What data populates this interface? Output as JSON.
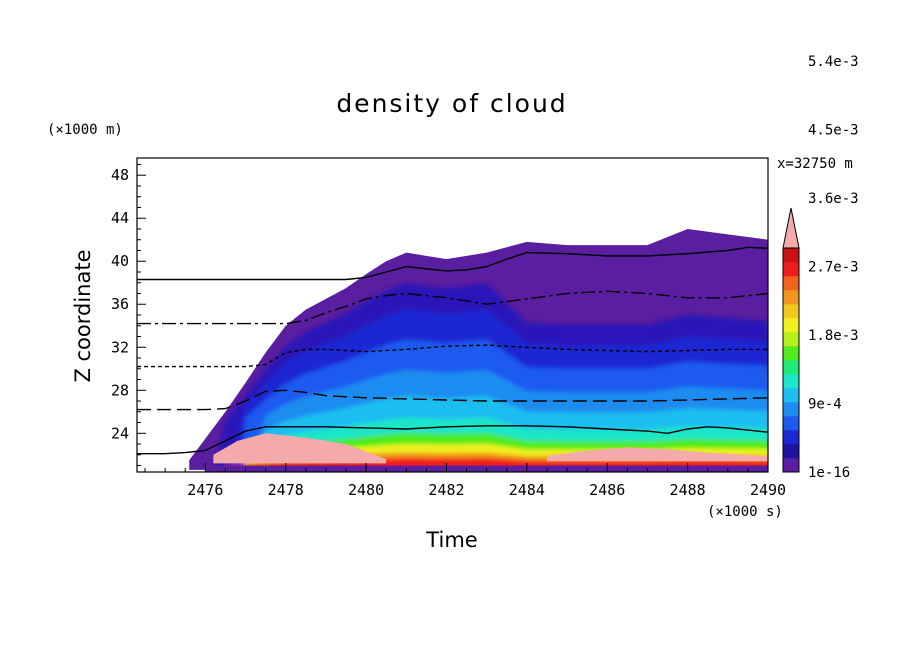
{
  "chart_data": {
    "type": "heatmap",
    "title": "density of cloud",
    "xlabel": "Time",
    "ylabel": "Z coordinate",
    "x_unit": "(×1000 s)",
    "y_unit": "(×1000 m)",
    "annotation": "x=32750 m",
    "xlim": [
      2474.3,
      2490
    ],
    "ylim": [
      20.4,
      49.6
    ],
    "x_ticks": [
      "2476",
      "2478",
      "2480",
      "2482",
      "2484",
      "2486",
      "2488",
      "2490"
    ],
    "y_ticks": [
      "24",
      "28",
      "32",
      "36",
      "40",
      "44",
      "48"
    ],
    "colorbar": {
      "labels": [
        "1e-16",
        "9e-4",
        "1.8e-3",
        "2.7e-3",
        "3.6e-3",
        "4.5e-3",
        "5.4e-3"
      ],
      "colors": [
        "#5a1ea0",
        "#1e14a0",
        "#1e28d2",
        "#1e5af0",
        "#1e8cf0",
        "#1ebef0",
        "#1ee6c8",
        "#1eeb78",
        "#50eb1e",
        "#b4f01e",
        "#f0f01e",
        "#f0c81e",
        "#f0961e",
        "#f0641e",
        "#f01e1e",
        "#c81414",
        "#f4aaaa"
      ],
      "extend": "max"
    },
    "cloud_envelope": {
      "x": [
        2475.6,
        2476.0,
        2476.5,
        2477.0,
        2477.5,
        2478.0,
        2478.5,
        2479.0,
        2479.5,
        2480.0,
        2480.5,
        2481.0,
        2482.0,
        2483.0,
        2484.0,
        2485.0,
        2486.0,
        2487.0,
        2488.0,
        2489.0,
        2490.0
      ],
      "top": [
        21.5,
        23.5,
        26.0,
        28.7,
        31.5,
        34.0,
        35.5,
        36.5,
        37.5,
        38.8,
        40.0,
        40.8,
        40.2,
        40.8,
        41.8,
        41.5,
        41.5,
        41.5,
        43.0,
        42.5,
        42.0
      ]
    },
    "contours": [
      {
        "style": "solid",
        "x": [
          2474.3,
          2475.0,
          2475.5,
          2476.0,
          2476.5,
          2477.0,
          2477.5,
          2478.0,
          2479.0,
          2480.0,
          2481.0,
          2482.0,
          2483.0,
          2484.0,
          2485.0,
          2486.0,
          2487.0,
          2487.5,
          2488.0,
          2488.5,
          2489.0,
          2490.0
        ],
        "y": [
          22.1,
          22.1,
          22.2,
          22.4,
          23.3,
          24.2,
          24.6,
          24.6,
          24.6,
          24.5,
          24.4,
          24.6,
          24.7,
          24.7,
          24.6,
          24.4,
          24.2,
          24.0,
          24.4,
          24.6,
          24.5,
          24.1
        ]
      },
      {
        "style": "long-dash",
        "x": [
          2474.3,
          2476.0,
          2476.5,
          2477.0,
          2477.5,
          2478.0,
          2478.5,
          2479.0,
          2480.0,
          2481.0,
          2482.0,
          2483.0,
          2484.0,
          2485.0,
          2486.0,
          2487.0,
          2488.0,
          2489.0,
          2490.0
        ],
        "y": [
          26.2,
          26.2,
          26.3,
          27.0,
          27.9,
          28.0,
          27.8,
          27.5,
          27.3,
          27.2,
          27.1,
          27.0,
          27.0,
          27.0,
          27.0,
          27.0,
          27.1,
          27.2,
          27.3
        ]
      },
      {
        "style": "short-dash",
        "x": [
          2474.3,
          2477.0,
          2477.5,
          2478.0,
          2478.5,
          2479.0,
          2479.5,
          2480.0,
          2481.0,
          2482.0,
          2483.0,
          2484.0,
          2485.0,
          2486.0,
          2487.0,
          2488.0,
          2489.0,
          2490.0
        ],
        "y": [
          30.2,
          30.2,
          30.4,
          31.5,
          31.8,
          31.8,
          31.7,
          31.6,
          31.8,
          32.1,
          32.2,
          32.0,
          31.8,
          31.7,
          31.6,
          31.7,
          31.8,
          31.8
        ]
      },
      {
        "style": "dash-dot",
        "x": [
          2474.3,
          2478.0,
          2478.5,
          2479.0,
          2479.5,
          2480.0,
          2480.5,
          2481.0,
          2482.0,
          2483.0,
          2484.0,
          2485.0,
          2486.0,
          2487.0,
          2488.0,
          2489.0,
          2490.0
        ],
        "y": [
          34.2,
          34.2,
          34.5,
          35.2,
          35.8,
          36.5,
          36.8,
          37.0,
          36.6,
          36.0,
          36.5,
          37.0,
          37.2,
          37.0,
          36.6,
          36.6,
          37.0
        ]
      },
      {
        "style": "solid",
        "x": [
          2474.3,
          2479.5,
          2480.0,
          2480.5,
          2481.0,
          2481.5,
          2482.0,
          2482.5,
          2483.0,
          2483.5,
          2484.0,
          2485.0,
          2486.0,
          2487.0,
          2488.0,
          2489.0,
          2489.5,
          2490.0
        ],
        "y": [
          38.3,
          38.3,
          38.5,
          39.0,
          39.5,
          39.3,
          39.1,
          39.2,
          39.5,
          40.2,
          40.8,
          40.7,
          40.5,
          40.5,
          40.7,
          41.0,
          41.3,
          41.2
        ]
      }
    ]
  }
}
